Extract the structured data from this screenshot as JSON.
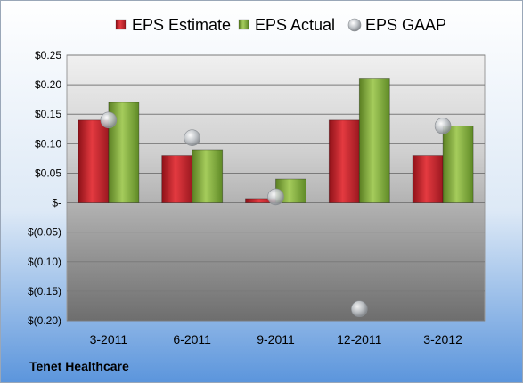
{
  "chart_data": {
    "type": "bar",
    "categories": [
      "3-2011",
      "6-2011",
      "9-2011",
      "12-2011",
      "3-2012"
    ],
    "series": [
      {
        "name": "EPS Estimate",
        "kind": "bar",
        "color": "#c0202a",
        "values": [
          0.14,
          0.08,
          0.007,
          0.14,
          0.08
        ]
      },
      {
        "name": "EPS Actual",
        "kind": "bar",
        "color": "#7faa3a",
        "values": [
          0.17,
          0.09,
          0.04,
          0.21,
          0.13
        ]
      },
      {
        "name": "EPS GAAP",
        "kind": "marker",
        "color": "#b8bcc0",
        "values": [
          0.14,
          0.11,
          0.01,
          -0.18,
          0.13
        ]
      }
    ],
    "ylim": [
      -0.2,
      0.25
    ],
    "yticks": [
      0.25,
      0.2,
      0.15,
      0.1,
      0.05,
      0,
      -0.05,
      -0.1,
      -0.15,
      -0.2
    ],
    "ytick_labels": [
      "$0.25",
      "$0.20",
      "$0.15",
      "$0.10",
      "$0.05",
      "$-",
      "$(0.05)",
      "$(0.10)",
      "$(0.15)",
      "$(0.20)"
    ],
    "grid": true,
    "legend_position": "top",
    "company": "Tenet Healthcare"
  }
}
